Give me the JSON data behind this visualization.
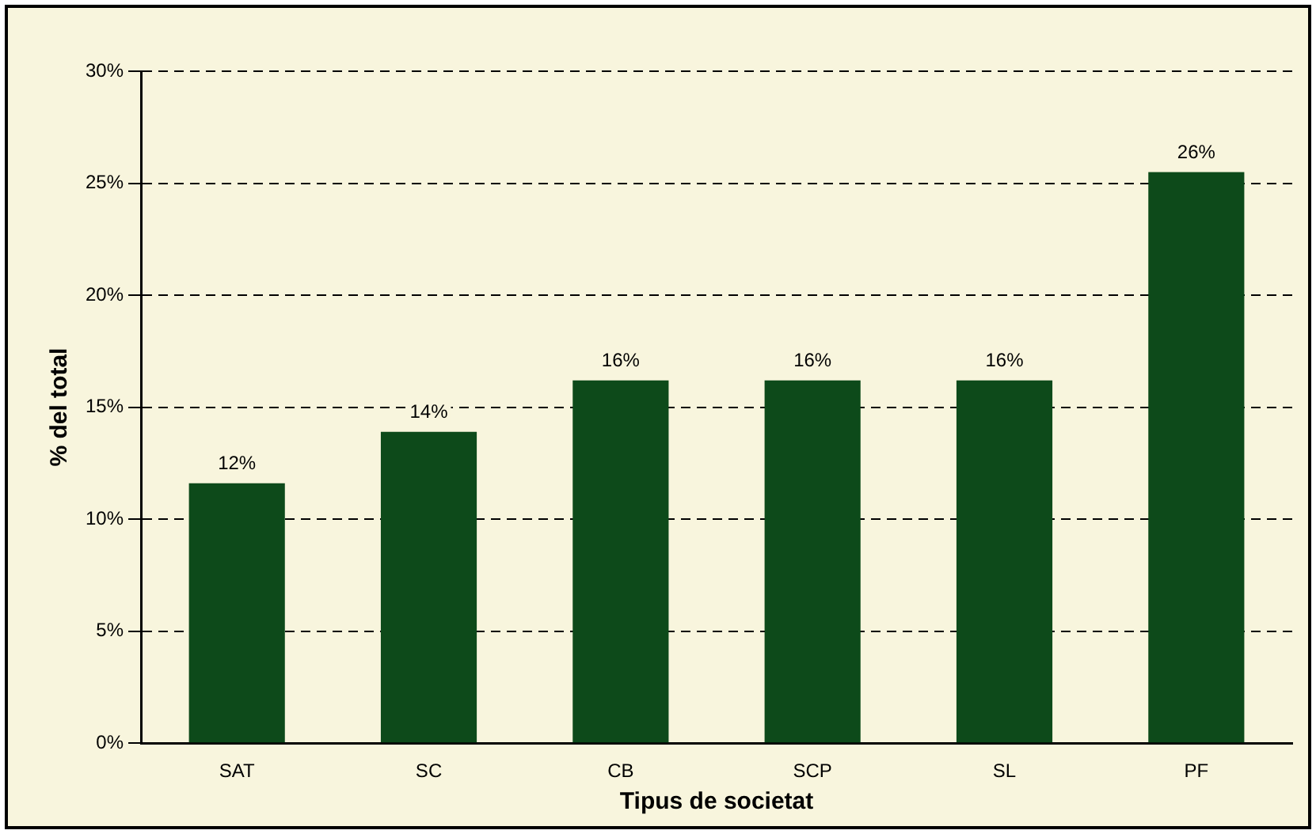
{
  "chart_data": {
    "type": "bar",
    "xlabel": "Tipus de societat",
    "ylabel": "% del total",
    "categories": [
      "SAT",
      "SC",
      "CB",
      "SCP",
      "SL",
      "PF"
    ],
    "values": [
      11.6,
      13.9,
      16.2,
      16.2,
      16.2,
      25.5
    ],
    "value_labels": [
      "12%",
      "14%",
      "16%",
      "16%",
      "16%",
      "26%"
    ],
    "color": "#0d4a1a",
    "ylim": [
      0,
      30
    ],
    "yticks": [
      {
        "value": 0,
        "label": "0%"
      },
      {
        "value": 5,
        "label": "5%"
      },
      {
        "value": 10,
        "label": "10%"
      },
      {
        "value": 15,
        "label": "15%"
      },
      {
        "value": 20,
        "label": "20%"
      },
      {
        "value": 25,
        "label": "25%"
      },
      {
        "value": 30,
        "label": "30%"
      }
    ],
    "grid": "y",
    "legend": false
  }
}
